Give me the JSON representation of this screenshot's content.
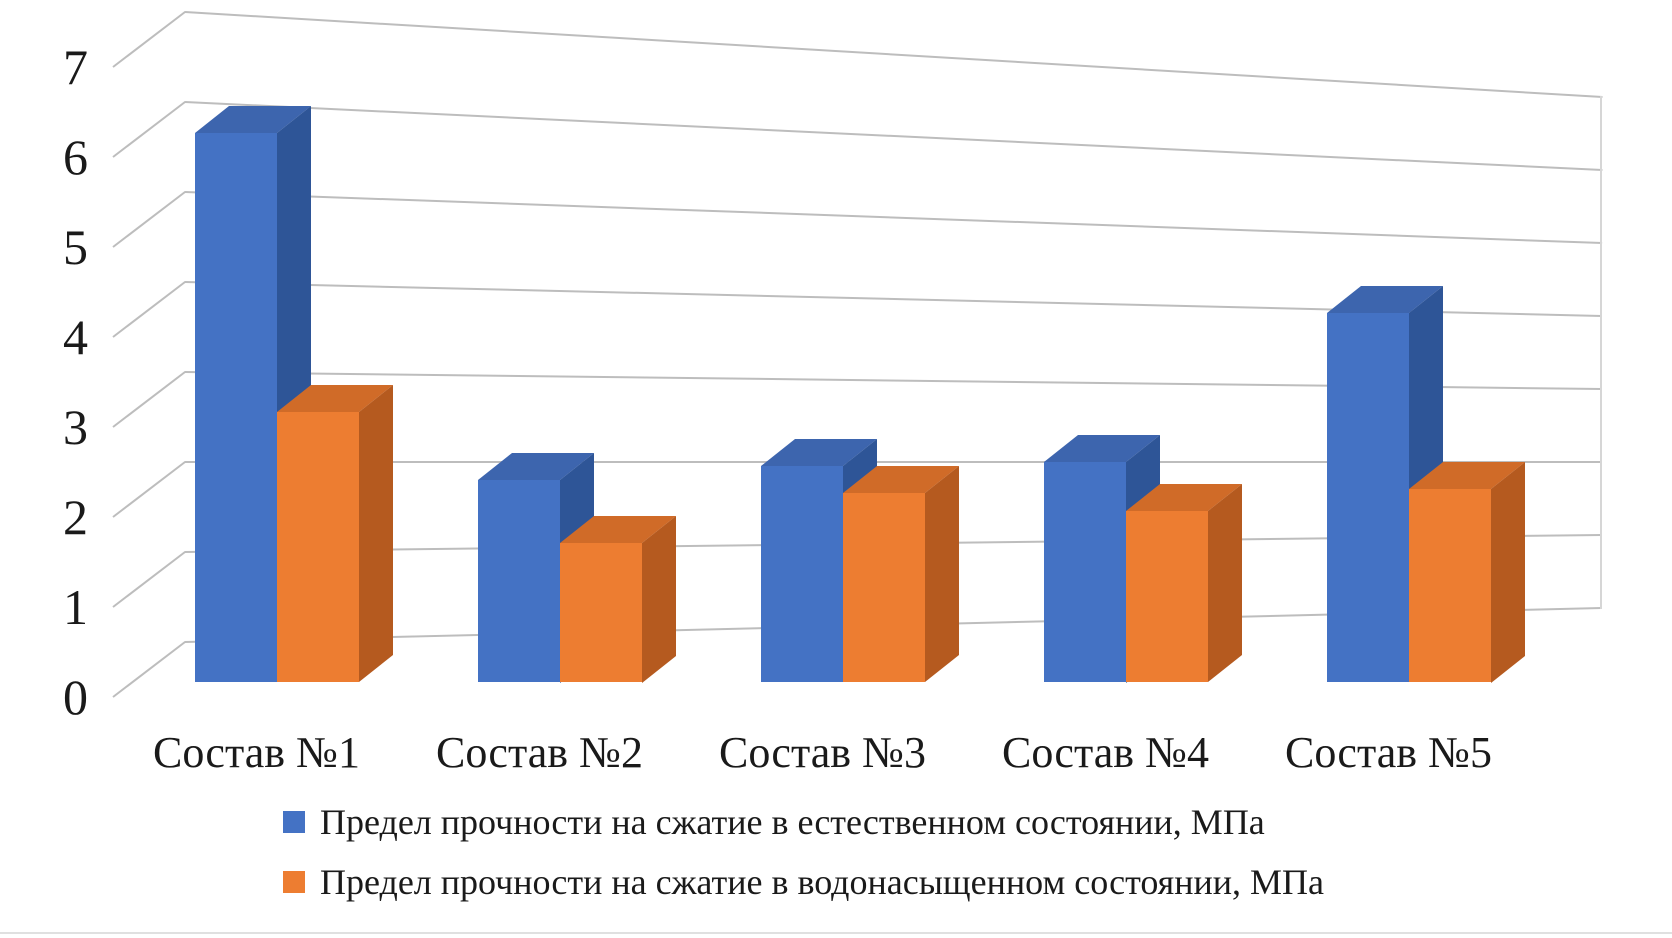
{
  "page": {
    "background": "#FFFFFF",
    "bottom_edge_color": "#E0E0E0",
    "text_color": "#1A1A1A"
  },
  "chart_data": {
    "type": "bar",
    "projection": "3d-column",
    "title": "",
    "xlabel": "",
    "ylabel": "",
    "categories": [
      "Состав №1",
      "Состав №2",
      "Состав №3",
      "Состав №4",
      "Состав №5"
    ],
    "series": [
      {
        "name": "Предел прочности на сжатие в естественном состоянии, МПа",
        "color": "#4472C4",
        "color_top": "#3D65AE",
        "color_side": "#2E5597",
        "values": [
          6.1,
          2.25,
          2.4,
          2.45,
          4.1
        ]
      },
      {
        "name": "Предел прочности на сжатие в водонасыщенном состоянии, МПа",
        "color": "#ED7D31",
        "color_top": "#D06B28",
        "color_side": "#B55A1F",
        "values": [
          3.0,
          1.55,
          2.1,
          1.9,
          2.15
        ]
      }
    ],
    "ylim": [
      0,
      7
    ],
    "yticks": [
      0,
      1,
      2,
      3,
      4,
      5,
      6,
      7
    ],
    "grid": true,
    "gridline_color": "#BDBDBD",
    "wall_edge_color": "#D6D6D6",
    "legend_position": "bottom"
  }
}
